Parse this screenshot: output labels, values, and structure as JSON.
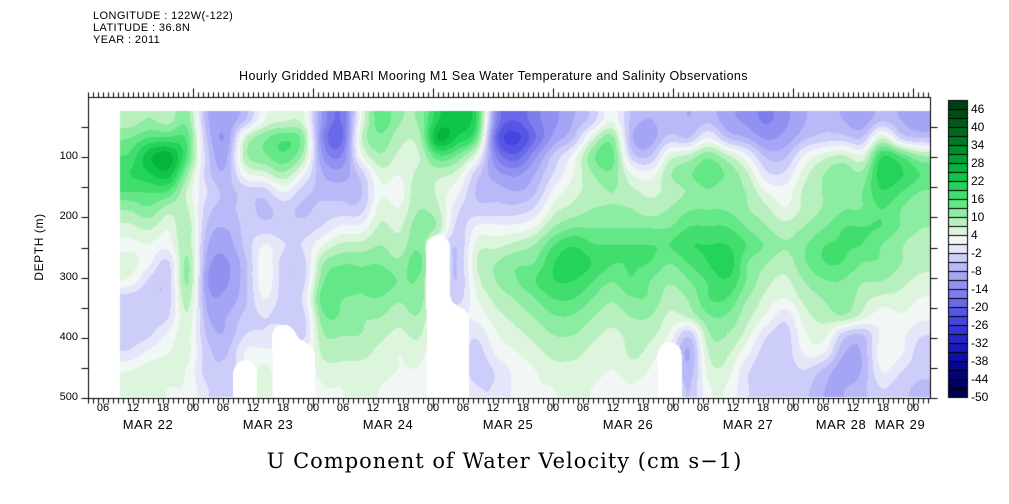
{
  "header": {
    "longitude": "LONGITUDE : 122W(-122)",
    "latitude": "LATITUDE : 36.8N",
    "year": "YEAR : 2011"
  },
  "title": "Hourly Gridded MBARI Mooring M1 Sea Water Temperature and Salinity Observations",
  "footer_title": "U Component of Water Velocity (cm s−1)",
  "y_axis": {
    "label": "DEPTH (m)",
    "tick_labels": [
      "100",
      "200",
      "300",
      "400",
      "500"
    ],
    "range_m": [
      0,
      500
    ],
    "minor_tick_step_m": 50
  },
  "x_axis": {
    "hour_labels": [
      "06",
      "12",
      "18",
      "00",
      "06",
      "12",
      "18",
      "00",
      "06",
      "12",
      "18",
      "00",
      "06",
      "12",
      "18",
      "00",
      "06",
      "12",
      "18",
      "00",
      "06",
      "12",
      "18",
      "00",
      "06",
      "12",
      "18",
      "00"
    ],
    "day_labels": [
      "MAR 22",
      "MAR 23",
      "MAR 24",
      "MAR 25",
      "MAR 26",
      "MAR 27",
      "MAR 28",
      "MAR 29"
    ],
    "year": "2011"
  },
  "colorbar": {
    "tick_labels": [
      "46",
      "40",
      "34",
      "28",
      "22",
      "16",
      "10",
      "4",
      "-2",
      "-8",
      "-14",
      "-20",
      "-26",
      "-32",
      "-38",
      "-44",
      "-50"
    ],
    "min": -50,
    "max": 49,
    "segment_step": 3,
    "gradient_anchors": [
      [
        -50,
        "#000048"
      ],
      [
        -44,
        "#00006e"
      ],
      [
        -38,
        "#0808a0"
      ],
      [
        -32,
        "#1e1ec3"
      ],
      [
        -26,
        "#3c3cdc"
      ],
      [
        -20,
        "#5f5fe8"
      ],
      [
        -14,
        "#8787f0"
      ],
      [
        -8,
        "#afaff6"
      ],
      [
        -2,
        "#d7d7fa"
      ],
      [
        1,
        "#f5f5fc"
      ],
      [
        4,
        "#ebf8eb"
      ],
      [
        7,
        "#cdf2cd"
      ],
      [
        10,
        "#a0eeaf"
      ],
      [
        16,
        "#50e478"
      ],
      [
        22,
        "#14cd50"
      ],
      [
        28,
        "#00aa37"
      ],
      [
        34,
        "#008428"
      ],
      [
        40,
        "#00621c"
      ],
      [
        46,
        "#004612"
      ],
      [
        49,
        "#00370c"
      ]
    ]
  },
  "chart_data": {
    "type": "heatmap",
    "value_name": "U Component of Water Velocity",
    "value_unit": "cm s-1",
    "value_range": [
      -50,
      49
    ],
    "x_start": "MAR 22 2011 08:00",
    "x_step_hours": 4,
    "x_end": "MAR 29 2011 04:00",
    "depths_m": [
      25,
      57,
      88,
      120,
      152,
      183,
      215,
      247,
      278,
      310,
      342,
      373,
      405,
      437,
      468,
      500
    ],
    "missing_value": null,
    "columns": [
      [
        8,
        13,
        16,
        19,
        16,
        10,
        6,
        3,
        6,
        4,
        -4,
        -4,
        -4,
        -2,
        4,
        6
      ],
      [
        10,
        16,
        25,
        22,
        16,
        13,
        8,
        4,
        2,
        -3,
        -5,
        -4,
        -3,
        2,
        6,
        6
      ],
      [
        8,
        16,
        28,
        25,
        16,
        8,
        4,
        2,
        -4,
        -5,
        -4,
        -3,
        2,
        4,
        6,
        4
      ],
      [
        13,
        16,
        16,
        10,
        6,
        8,
        10,
        10,
        13,
        13,
        10,
        8,
        6,
        6,
        4,
        4
      ],
      [
        -8,
        -6,
        -4,
        -4,
        -2,
        -4,
        -6,
        -8,
        -10,
        -12,
        -10,
        -8,
        -6,
        -4,
        -4,
        -2
      ],
      [
        -10,
        -12,
        -10,
        -8,
        -6,
        -6,
        -8,
        -10,
        -12,
        -12,
        -10,
        -8,
        -8,
        -6,
        -4,
        -4
      ],
      [
        -6,
        8,
        10,
        4,
        -4,
        -4,
        -4,
        -4,
        -6,
        -6,
        -6,
        -4,
        -2,
        2,
        null,
        null
      ],
      [
        4,
        13,
        13,
        6,
        -4,
        -6,
        -4,
        2,
        4,
        4,
        2,
        -2,
        -2,
        2,
        6,
        6
      ],
      [
        6,
        16,
        16,
        10,
        2,
        -4,
        -4,
        -2,
        -4,
        -4,
        -4,
        -4,
        null,
        null,
        null,
        null
      ],
      [
        6,
        13,
        10,
        2,
        -4,
        -6,
        -4,
        -2,
        -4,
        -4,
        -2,
        -4,
        -4,
        null,
        null,
        null
      ],
      [
        -12,
        -15,
        -12,
        -8,
        -6,
        -4,
        -2,
        4,
        10,
        13,
        16,
        13,
        10,
        8,
        6,
        4
      ],
      [
        -18,
        -20,
        -15,
        -10,
        -6,
        -4,
        2,
        8,
        13,
        16,
        13,
        13,
        10,
        8,
        6,
        4
      ],
      [
        4,
        8,
        4,
        -4,
        -6,
        -4,
        2,
        8,
        13,
        13,
        13,
        10,
        10,
        8,
        6,
        6
      ],
      [
        16,
        13,
        10,
        6,
        4,
        6,
        8,
        10,
        13,
        16,
        13,
        10,
        8,
        6,
        6,
        4
      ],
      [
        10,
        8,
        6,
        4,
        2,
        4,
        6,
        8,
        10,
        13,
        10,
        8,
        6,
        4,
        4,
        2
      ],
      [
        10,
        8,
        6,
        8,
        10,
        10,
        13,
        13,
        16,
        13,
        13,
        10,
        8,
        6,
        4,
        4
      ],
      [
        22,
        28,
        16,
        8,
        6,
        8,
        10,
        null,
        null,
        null,
        null,
        null,
        null,
        null,
        null,
        null
      ],
      [
        25,
        22,
        13,
        6,
        2,
        -2,
        -4,
        -6,
        -6,
        -6,
        -4,
        null,
        null,
        null,
        null,
        null
      ],
      [
        20,
        16,
        4,
        -4,
        -6,
        -4,
        2,
        6,
        8,
        6,
        4,
        2,
        -2,
        -4,
        -4,
        -2
      ],
      [
        -15,
        -20,
        -15,
        -10,
        -6,
        -4,
        2,
        6,
        10,
        10,
        8,
        6,
        4,
        2,
        -2,
        -2
      ],
      [
        -20,
        -25,
        -20,
        -12,
        -8,
        -4,
        2,
        8,
        13,
        13,
        10,
        8,
        6,
        4,
        2,
        2
      ],
      [
        -15,
        -18,
        -12,
        -8,
        -6,
        -2,
        4,
        10,
        13,
        16,
        13,
        10,
        8,
        6,
        4,
        4
      ],
      [
        -12,
        -10,
        -4,
        -2,
        2,
        6,
        10,
        16,
        19,
        19,
        16,
        13,
        10,
        8,
        6,
        4
      ],
      [
        -8,
        -6,
        2,
        4,
        6,
        8,
        13,
        19,
        22,
        19,
        16,
        13,
        10,
        8,
        6,
        6
      ],
      [
        -4,
        6,
        13,
        10,
        8,
        10,
        13,
        16,
        19,
        16,
        13,
        10,
        8,
        6,
        6,
        4
      ],
      [
        4,
        13,
        16,
        13,
        10,
        10,
        13,
        16,
        16,
        13,
        10,
        8,
        6,
        4,
        4,
        2
      ],
      [
        -6,
        -8,
        -4,
        4,
        8,
        10,
        13,
        16,
        16,
        16,
        13,
        10,
        8,
        8,
        6,
        4
      ],
      [
        -8,
        -10,
        -6,
        2,
        6,
        8,
        13,
        16,
        16,
        13,
        13,
        10,
        8,
        6,
        4,
        2
      ],
      [
        -6,
        -4,
        6,
        10,
        8,
        10,
        13,
        16,
        13,
        10,
        8,
        6,
        4,
        null,
        null,
        null
      ],
      [
        -8,
        -6,
        8,
        13,
        10,
        13,
        16,
        19,
        16,
        13,
        10,
        8,
        -6,
        -10,
        -8,
        -6
      ],
      [
        -6,
        2,
        13,
        16,
        13,
        13,
        16,
        19,
        19,
        16,
        16,
        13,
        10,
        8,
        6,
        4
      ],
      [
        -10,
        -6,
        8,
        13,
        10,
        13,
        16,
        19,
        22,
        19,
        16,
        13,
        10,
        8,
        6,
        4
      ],
      [
        -12,
        -8,
        2,
        8,
        10,
        10,
        13,
        16,
        13,
        13,
        10,
        8,
        6,
        2,
        -2,
        -2
      ],
      [
        -15,
        -12,
        -6,
        -2,
        4,
        8,
        10,
        13,
        10,
        8,
        6,
        4,
        -2,
        -4,
        -4,
        -4
      ],
      [
        -12,
        -10,
        -6,
        -2,
        2,
        4,
        8,
        10,
        8,
        6,
        4,
        -2,
        -4,
        -4,
        -4,
        -4
      ],
      [
        -8,
        -6,
        2,
        6,
        8,
        8,
        10,
        13,
        13,
        10,
        8,
        6,
        4,
        2,
        -2,
        -4
      ],
      [
        -6,
        -4,
        6,
        10,
        10,
        10,
        13,
        16,
        16,
        13,
        10,
        8,
        6,
        2,
        -6,
        -8
      ],
      [
        -8,
        -4,
        8,
        13,
        13,
        13,
        16,
        16,
        16,
        13,
        13,
        10,
        -4,
        -8,
        -10,
        -8
      ],
      [
        -10,
        -6,
        4,
        10,
        13,
        13,
        16,
        16,
        13,
        10,
        8,
        6,
        -6,
        -8,
        -8,
        -6
      ],
      [
        -6,
        8,
        20,
        22,
        19,
        16,
        16,
        13,
        13,
        10,
        6,
        2,
        2,
        4,
        2,
        -2
      ],
      [
        -8,
        -4,
        16,
        20,
        16,
        13,
        13,
        10,
        10,
        8,
        6,
        4,
        2,
        2,
        -2,
        -4
      ],
      [
        -10,
        -6,
        10,
        16,
        13,
        10,
        10,
        8,
        8,
        6,
        4,
        2,
        -2,
        -4,
        -4,
        -6
      ]
    ]
  }
}
